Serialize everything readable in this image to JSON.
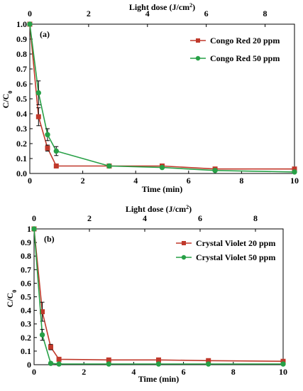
{
  "chart_data": [
    {
      "type": "line",
      "panel_label": "(a)",
      "xlabel": "Time (min)",
      "ylabel": "C/C0",
      "top_xlabel": "Light dose (J/cm2)",
      "xlim": [
        0,
        10
      ],
      "ylim": [
        0,
        1.0
      ],
      "xticks": [
        0,
        2,
        4,
        6,
        8,
        10
      ],
      "yticks": [
        0,
        0.1,
        0.2,
        0.3,
        0.4,
        0.5,
        0.6,
        0.7,
        0.8,
        0.9,
        1.0
      ],
      "top_xlim": [
        0,
        9
      ],
      "top_xticks": [
        0,
        2,
        4,
        6,
        8
      ],
      "legend_position": "top-right",
      "grid": false,
      "series": [
        {
          "name": "Congo Red 20 ppm",
          "color": "#c0392b",
          "marker": "square",
          "x": [
            0,
            0.33,
            0.67,
            1,
            3,
            5,
            7,
            10
          ],
          "y": [
            1.0,
            0.38,
            0.17,
            0.05,
            0.05,
            0.05,
            0.03,
            0.03
          ],
          "err": [
            0,
            0.06,
            0.02,
            0.01,
            0,
            0,
            0,
            0
          ]
        },
        {
          "name": "Congo Red 50 ppm",
          "color": "#27a046",
          "marker": "circle",
          "x": [
            0,
            0.33,
            0.67,
            1,
            3,
            5,
            7,
            10
          ],
          "y": [
            1.0,
            0.54,
            0.26,
            0.15,
            0.05,
            0.04,
            0.02,
            0.01
          ],
          "err": [
            0,
            0.08,
            0.04,
            0.03,
            0,
            0,
            0,
            0
          ]
        }
      ]
    },
    {
      "type": "line",
      "panel_label": "(b)",
      "xlabel": "Time (min)",
      "ylabel": "C/C0",
      "top_xlabel": "Light dose (J/cm2)",
      "xlim": [
        0,
        10
      ],
      "ylim": [
        0,
        1.0
      ],
      "xticks": [
        0,
        2,
        4,
        6,
        8,
        10
      ],
      "yticks": [
        0,
        0.1,
        0.2,
        0.3,
        0.4,
        0.5,
        0.6,
        0.7,
        0.8,
        0.9,
        1.0
      ],
      "top_xlim": [
        0,
        9
      ],
      "top_xticks": [
        0,
        2,
        4,
        6,
        8
      ],
      "legend_position": "top-right",
      "grid": false,
      "series": [
        {
          "name": "Crystal Violet 20 ppm",
          "color": "#c0392b",
          "marker": "square",
          "x": [
            0,
            0.33,
            0.67,
            1,
            3,
            5,
            7,
            10
          ],
          "y": [
            1.0,
            0.39,
            0.13,
            0.04,
            0.035,
            0.035,
            0.03,
            0.025
          ],
          "err": [
            0,
            0.07,
            0.02,
            0.01,
            0,
            0,
            0,
            0
          ]
        },
        {
          "name": "Crystal Violet 50 ppm",
          "color": "#27a046",
          "marker": "circle",
          "x": [
            0,
            0.33,
            0.67,
            1,
            3,
            5,
            7,
            10
          ],
          "y": [
            1.0,
            0.22,
            0.01,
            0.005,
            0.005,
            0.005,
            0.005,
            0.005
          ],
          "err": [
            0,
            0.04,
            0.01,
            0,
            0,
            0,
            0,
            0
          ]
        }
      ]
    }
  ]
}
